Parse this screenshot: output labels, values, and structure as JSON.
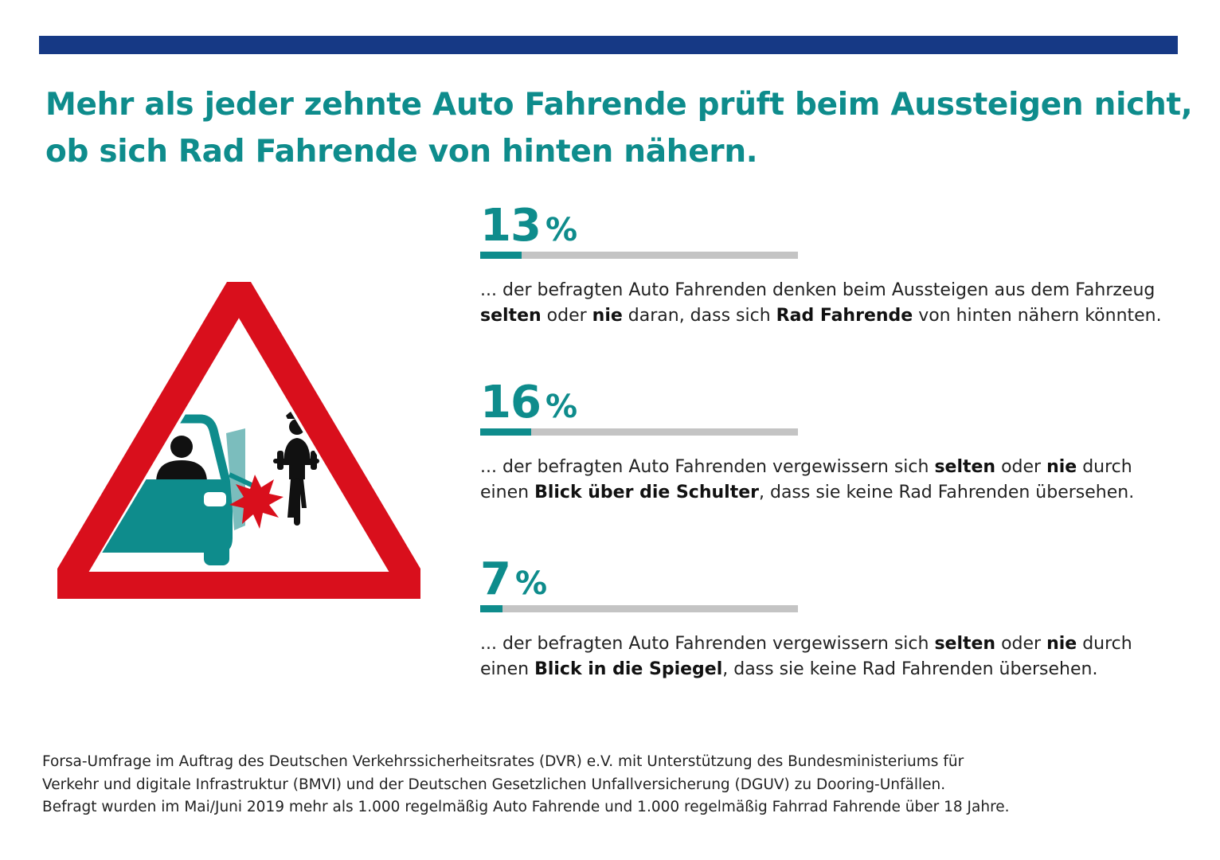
{
  "headline": {
    "line1": "Mehr als jeder zehnte Auto Fahrende prüft beim Aussteigen nicht,",
    "line2": "ob sich Rad Fahrende von hinten nähern."
  },
  "chart_data": {
    "type": "bar",
    "categories": [
      "denken beim Aussteigen selten oder nie daran, dass sich Rad Fahrende von hinten nähern könnten",
      "vergewissern sich selten oder nie durch einen Blick über die Schulter",
      "vergewissern sich selten oder nie durch einen Blick in die Spiegel"
    ],
    "values": [
      13,
      16,
      7
    ],
    "unit": "%",
    "ylim": [
      0,
      100
    ]
  },
  "stats": [
    {
      "value": "13",
      "unit": "%",
      "desc": [
        {
          "t": "... der befragten Auto Fahrenden denken beim Aussteigen aus dem Fahrzeug "
        },
        {
          "t": "selten",
          "b": true
        },
        {
          "t": " oder "
        },
        {
          "t": "nie",
          "b": true
        },
        {
          "t": " daran, dass sich "
        },
        {
          "t": "Rad Fahrende",
          "b": true
        },
        {
          "t": " von hinten nähern könnten."
        }
      ]
    },
    {
      "value": "16",
      "unit": "%",
      "desc": [
        {
          "t": "... der befragten Auto Fahrenden vergewissern sich "
        },
        {
          "t": "selten",
          "b": true
        },
        {
          "t": " oder "
        },
        {
          "t": "nie",
          "b": true
        },
        {
          "t": " durch einen "
        },
        {
          "t": "Blick über die Schulter",
          "b": true
        },
        {
          "t": ", dass sie keine Rad Fahrenden übersehen."
        }
      ]
    },
    {
      "value": "7",
      "unit": "%",
      "desc": [
        {
          "t": "... der befragten Auto Fahrenden vergewissern sich "
        },
        {
          "t": "selten",
          "b": true
        },
        {
          "t": " oder "
        },
        {
          "t": "nie",
          "b": true
        },
        {
          "t": " durch einen "
        },
        {
          "t": "Blick in die Spiegel",
          "b": true
        },
        {
          "t": ", dass sie keine Rad Fahrenden übersehen."
        }
      ]
    }
  ],
  "footnote": {
    "line1": "Forsa-Umfrage im Auftrag des Deutschen Verkehrssicherheitsrates (DVR) e.V. mit Unterstützung des Bundesministeriums für",
    "line2": "Verkehr und digitale Infrastruktur (BMVI) und der Deutschen Gesetzlichen Unfallversicherung (DGUV) zu Dooring-Unfällen.",
    "line3": "Befragt wurden im Mai/Juni 2019 mehr als 1.000 regelmäßig Auto Fahrende und 1.000 regelmäßig Fahrrad Fahrende über 18 Jahre."
  },
  "colors": {
    "brand_blue": "#163985",
    "teal": "#0e8c8c",
    "bar_track": "#c4c4c4",
    "sign_red": "#d90f1c"
  },
  "icons": [
    "warning-triangle-icon",
    "car-icon",
    "driver-icon",
    "cyclist-icon",
    "impact-burst-icon"
  ]
}
